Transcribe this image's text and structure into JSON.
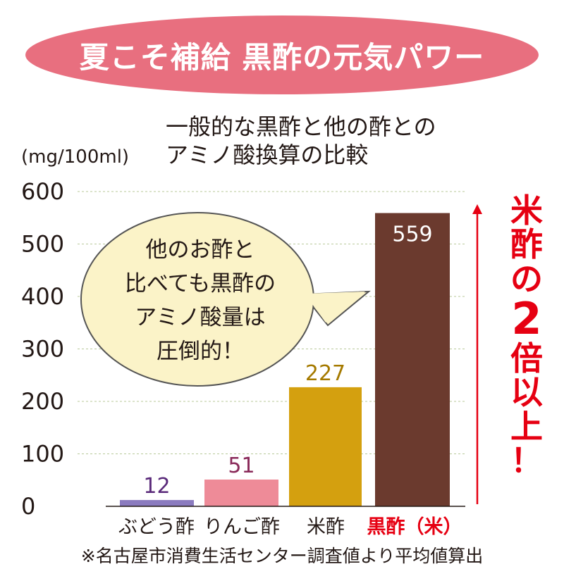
{
  "banner": {
    "title": "夏こそ補給 黒酢の元気パワー",
    "bg_color": "#e86f7f"
  },
  "subtitle": "一般的な黒酢と他の酢との\nアミノ酸換算の比較",
  "speech_bubble": {
    "lines": [
      "他のお酢と",
      "比べても黒酢の",
      "アミノ酸量は",
      "圧倒的！"
    ],
    "fill": "#fbf3c8"
  },
  "callout": {
    "chars": [
      "米",
      "酢",
      "の",
      "2",
      "倍",
      "以",
      "上",
      "！"
    ],
    "color": "#e60012"
  },
  "footnote": "※名古屋市消費生活センター調査値より平均値算出",
  "chart_data": {
    "type": "bar",
    "ylabel": "(mg/100ml)",
    "ylim": [
      0,
      600
    ],
    "yticks": [
      0,
      100,
      200,
      300,
      400,
      500,
      600
    ],
    "grid": "horizontal-dashed",
    "categories": [
      "ぶどう酢",
      "りんご酢",
      "米酢",
      "黒酢（米）"
    ],
    "values": [
      12,
      51,
      227,
      559
    ],
    "bar_colors": [
      "#8b7bbf",
      "#ee8b98",
      "#d4a00f",
      "#6b3a2e"
    ],
    "label_colors": [
      "#5a2a7a",
      "#8a2a5a",
      "#a57a00",
      "#ffffff"
    ],
    "category_colors": [
      "#231815",
      "#231815",
      "#231815",
      "#e60012"
    ]
  }
}
